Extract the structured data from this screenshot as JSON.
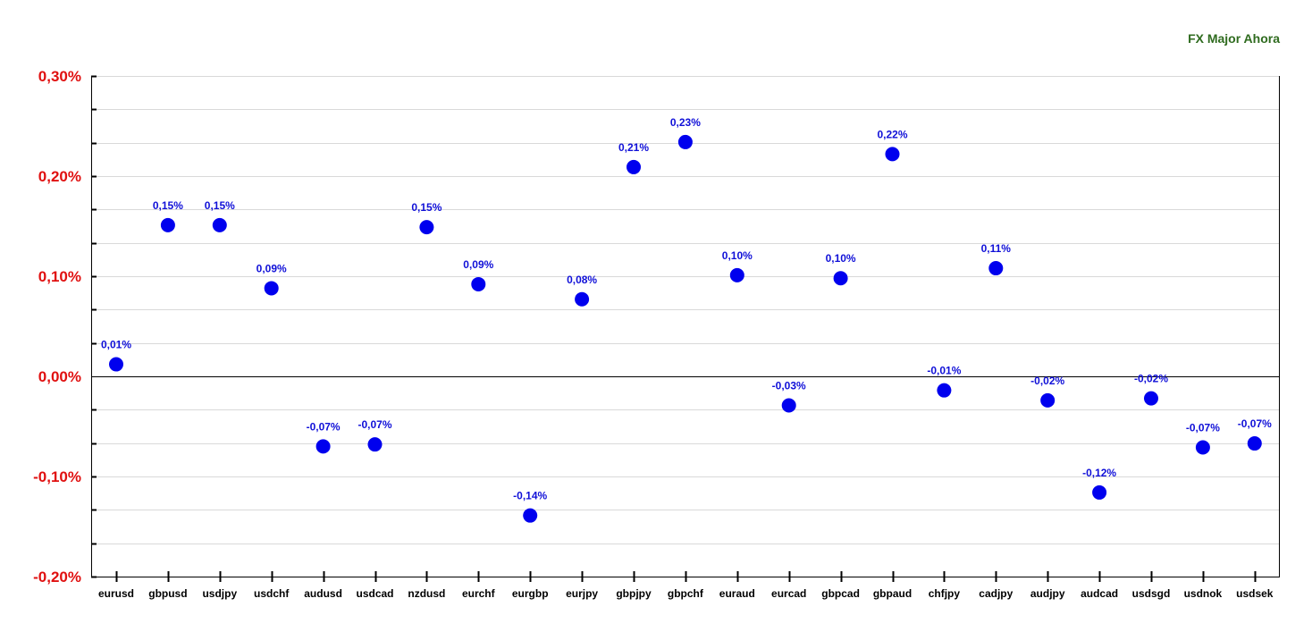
{
  "chart_data": {
    "type": "scatter",
    "title": "FX Major Ahora",
    "categories": [
      "eurusd",
      "gbpusd",
      "usdjpy",
      "usdchf",
      "audusd",
      "usdcad",
      "nzdusd",
      "eurchf",
      "eurgbp",
      "eurjpy",
      "gbpjpy",
      "gbpchf",
      "euraud",
      "eurcad",
      "gbpcad",
      "gbpaud",
      "chfjpy",
      "cadjpy",
      "audjpy",
      "audcad",
      "usdsgd",
      "usdnok",
      "usdsek"
    ],
    "values": [
      0.012,
      0.151,
      0.151,
      0.088,
      -0.07,
      -0.068,
      0.149,
      0.092,
      -0.139,
      0.077,
      0.209,
      0.234,
      0.101,
      -0.029,
      0.098,
      0.222,
      -0.014,
      0.108,
      -0.024,
      -0.116,
      -0.022,
      -0.071,
      -0.067
    ],
    "labels": [
      "0,01%",
      "0,15%",
      "0,15%",
      "0,09%",
      "-0,07%",
      "-0,07%",
      "0,15%",
      "0,09%",
      "-0,14%",
      "0,08%",
      "0,21%",
      "0,23%",
      "0,10%",
      "-0,03%",
      "0,10%",
      "0,22%",
      "-0,01%",
      "0,11%",
      "-0,02%",
      "-0,12%",
      "-0,02%",
      "-0,07%",
      "-0,07%"
    ],
    "ylim": [
      -0.2,
      0.3
    ],
    "yticks": [
      0.3,
      0.2,
      0.1,
      0.0,
      -0.1,
      -0.2
    ],
    "ytick_labels": [
      "0,30%",
      "0,20%",
      "0,10%",
      "0,00%",
      "-0,10%",
      "-0,20%"
    ],
    "xlabel": "",
    "ylabel": "",
    "grid": true,
    "colors": {
      "marker": "#0000ee",
      "data_label": "#1010d8",
      "ytick_label": "#e01010",
      "title": "#2f6b1f",
      "grid": "#d9d9d9",
      "axis": "#000000"
    }
  }
}
